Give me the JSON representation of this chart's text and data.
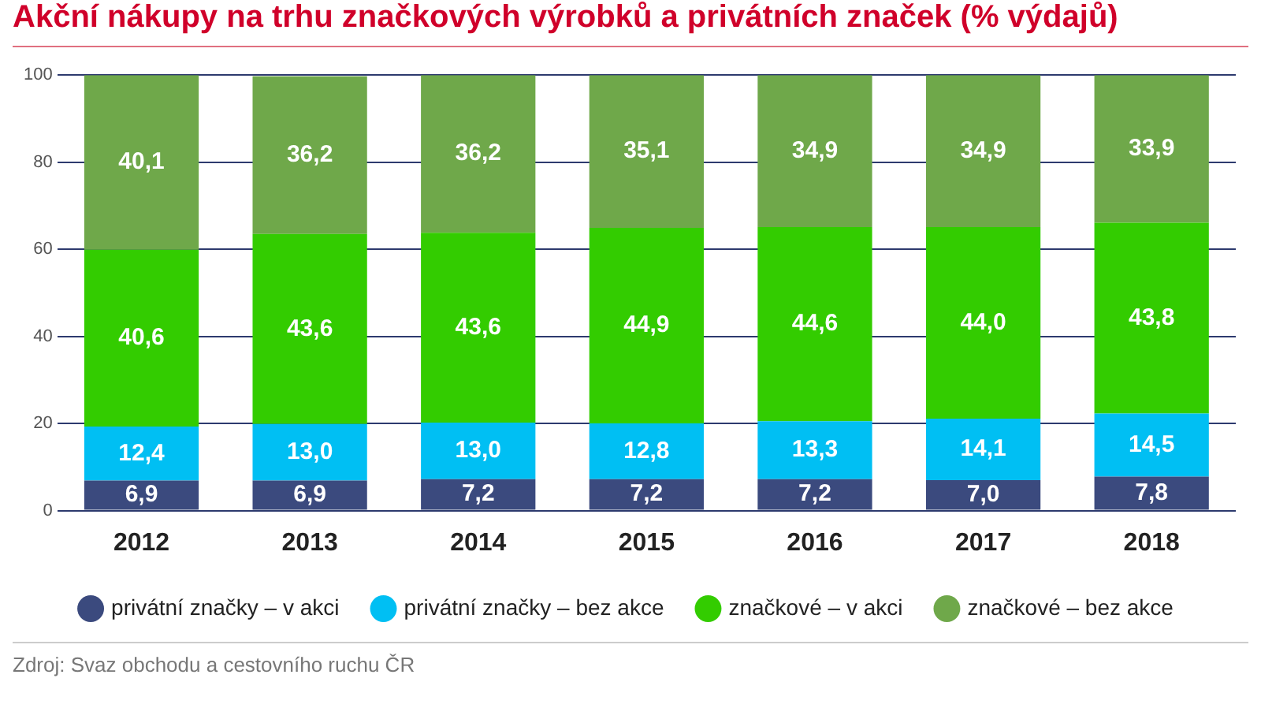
{
  "chart_data": {
    "type": "bar",
    "title": "Akční nákupy na trhu značkových výrobků a privátních značek (% výdajů)",
    "categories": [
      "2012",
      "2013",
      "2014",
      "2015",
      "2016",
      "2017",
      "2018"
    ],
    "stacked": true,
    "ylim": [
      0,
      100
    ],
    "yticks": [
      0,
      20,
      40,
      60,
      80,
      100
    ],
    "grid": "y",
    "legend": "bottom",
    "series": [
      {
        "name": "privátní značky – v akci",
        "color": "#3b4a7e",
        "values": [
          6.9,
          6.9,
          7.2,
          7.2,
          7.2,
          7.0,
          7.8
        ],
        "value_labels": [
          "6,9",
          "6,9",
          "7,2",
          "7,2",
          "7,2",
          "7,0",
          "7,8"
        ]
      },
      {
        "name": "privátní značky – bez akce",
        "color": "#00bff3",
        "values": [
          12.4,
          13.0,
          13.0,
          12.8,
          13.3,
          14.1,
          14.5
        ],
        "value_labels": [
          "12,4",
          "13,0",
          "13,0",
          "12,8",
          "13,3",
          "14,1",
          "14,5"
        ]
      },
      {
        "name": "značkové – v akci",
        "color": "#33cc00",
        "values": [
          40.6,
          43.6,
          43.6,
          44.9,
          44.6,
          44.0,
          43.8
        ],
        "value_labels": [
          "40,6",
          "43,6",
          "43,6",
          "44,9",
          "44,6",
          "44,0",
          "43,8"
        ]
      },
      {
        "name": "značkové – bez akce",
        "color": "#6fa84a",
        "values": [
          40.1,
          36.2,
          36.2,
          35.1,
          34.9,
          34.9,
          33.9
        ],
        "value_labels": [
          "40,1",
          "36,2",
          "36,2",
          "35,1",
          "34,9",
          "34,9",
          "33,9"
        ]
      }
    ],
    "annotations": [
      "Zdroj: Svaz obchodu a cestovního ruchu ČR"
    ]
  }
}
